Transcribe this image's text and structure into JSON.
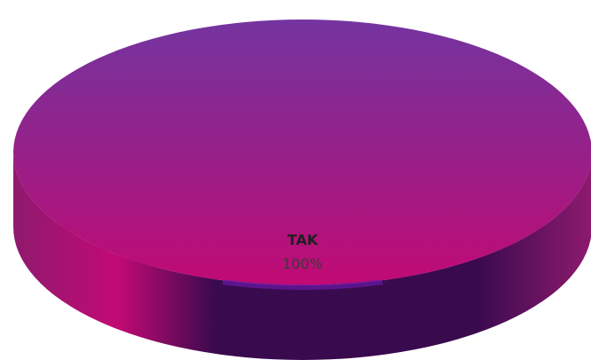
{
  "chart_data": {
    "type": "pie",
    "style": "3d",
    "categories": [
      "TAK"
    ],
    "values": [
      100
    ],
    "labels": [
      {
        "category": "TAK",
        "percent_text": "100%"
      }
    ],
    "legend": "none",
    "colors": {
      "top_start": "#7434a0",
      "top_mid": "#9a1e86",
      "top_end": "#c20a74",
      "side_light": "#8e1a6e",
      "side_dark": "#3a0a4e",
      "rim": "#6a1aa6"
    }
  }
}
